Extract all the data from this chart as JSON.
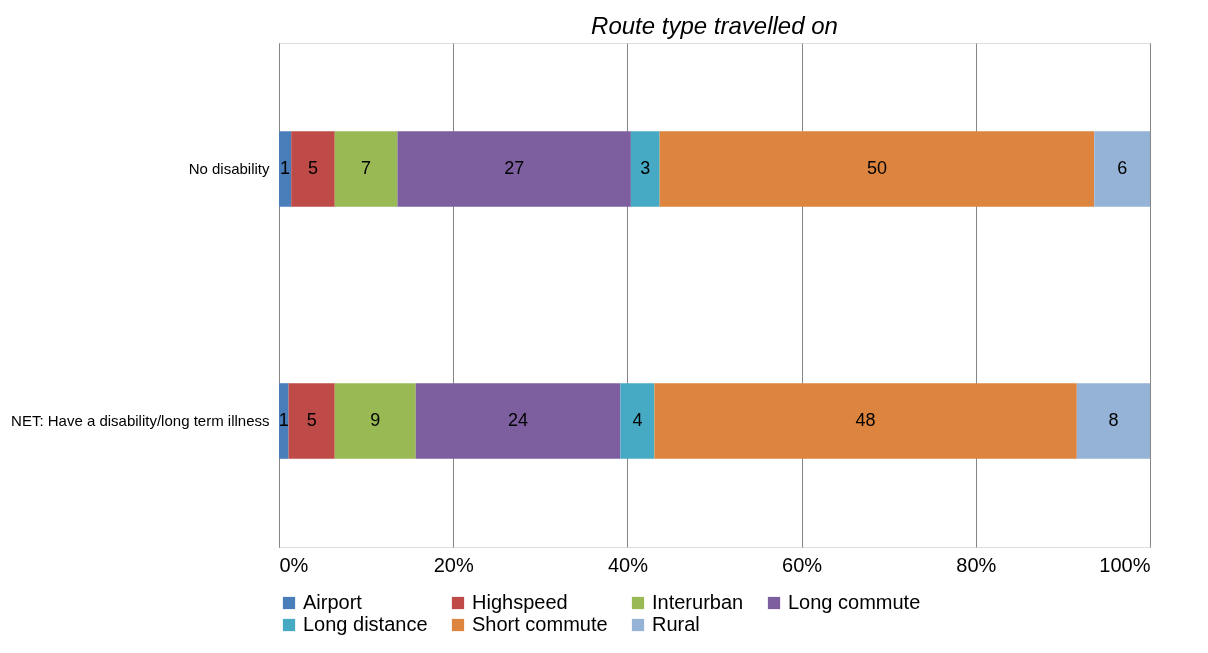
{
  "chart_data": {
    "type": "bar",
    "orientation": "horizontal",
    "stacked": true,
    "title": "Route type travelled on",
    "categories": [
      "No disability",
      "NET: Have a disability/long term illness"
    ],
    "series": [
      {
        "name": "Airport",
        "color": "#4a7ebb",
        "values": [
          1.4,
          1.1
        ],
        "value_labels": [
          "1",
          "1"
        ]
      },
      {
        "name": "Highspeed",
        "color": "#be4b48",
        "values": [
          5.0,
          5.3
        ],
        "value_labels": [
          "5",
          "5"
        ]
      },
      {
        "name": "Interurban",
        "color": "#98b954",
        "values": [
          7.2,
          9.3
        ],
        "value_labels": [
          "7",
          "9"
        ]
      },
      {
        "name": "Long commute",
        "color": "#7d5fa0",
        "values": [
          26.8,
          23.5
        ],
        "value_labels": [
          "27",
          "24"
        ]
      },
      {
        "name": "Long distance",
        "color": "#46aac5",
        "values": [
          3.3,
          3.9
        ],
        "value_labels": [
          "3",
          "4"
        ]
      },
      {
        "name": "Short commute",
        "color": "#dd853e",
        "values": [
          49.9,
          48.5
        ],
        "value_labels": [
          "50",
          "48"
        ]
      },
      {
        "name": "Rural",
        "color": "#95b3d7",
        "values": [
          6.4,
          8.4
        ],
        "value_labels": [
          "6",
          "8"
        ]
      }
    ],
    "xlim": [
      0,
      100
    ],
    "xticks": [
      {
        "value": 0,
        "label": "0%"
      },
      {
        "value": 20,
        "label": "20%"
      },
      {
        "value": 40,
        "label": "40%"
      },
      {
        "value": 60,
        "label": "60%"
      },
      {
        "value": 80,
        "label": "80%"
      },
      {
        "value": 100,
        "label": "100%"
      }
    ],
    "grid": "x",
    "legend": "bottom"
  }
}
